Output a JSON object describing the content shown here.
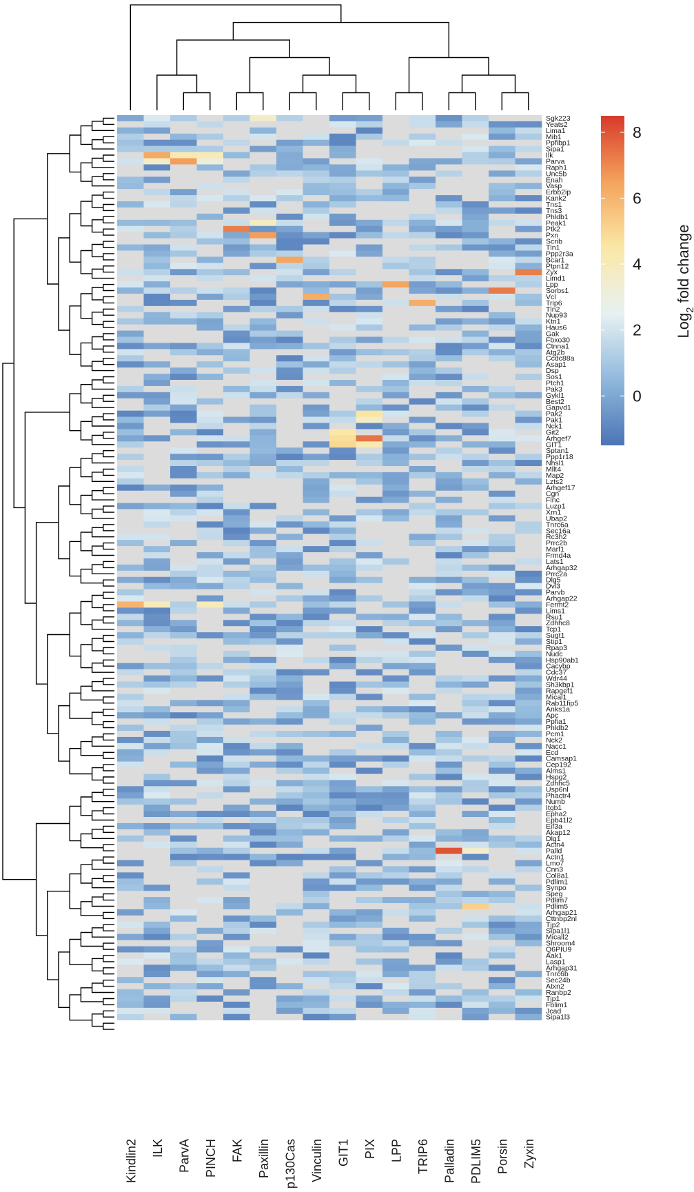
{
  "chart_data": {
    "type": "heatmap",
    "title": "",
    "columns": [
      "Kindlin2",
      "ILK",
      "ParvA",
      "PINCH",
      "FAK",
      "Paxillin",
      "p130Cas",
      "Vinculin",
      "GIT1",
      "PIX",
      "LPP",
      "TRIP6",
      "Palladin",
      "PDLIM5",
      "Porsin",
      "Zyxin"
    ],
    "rows": [
      "Sgk223",
      "Yeats2",
      "Lima1",
      "Mib1",
      "Ppfibp1",
      "Sipa1",
      "Ilk",
      "Parva",
      "Raph1",
      "Unc5b",
      "Enah",
      "Vasp",
      "Erbb2ip",
      "Kank2",
      "Tns1",
      "Tns3",
      "Phldb1",
      "Peak1",
      "Ptk2",
      "Pxn",
      "Scrib",
      "Tln1",
      "Ppp2r3a",
      "Bcar1",
      "Ptpn12",
      "Zyx",
      "Limd1",
      "Lpp",
      "Sorbs1",
      "Vcl",
      "Trip6",
      "Tln2",
      "Nup93",
      "Ktn1",
      "Haus6",
      "Gak",
      "Fbxo30",
      "Ctnna1",
      "Atg2b",
      "Ccdc88a",
      "Asap1",
      "Dsp",
      "Sos1",
      "Ptch1",
      "Pak3",
      "Gykl1",
      "Best2",
      "Gapvd1",
      "Pak2",
      "Pak1",
      "Nck1",
      "Git2",
      "Arhgef7",
      "GIT1",
      "Sptan1",
      "Ppp1r18",
      "Nhsl1",
      "Mllt4",
      "Map2",
      "Lzts2",
      "Arhgef17",
      "Cgn",
      "Flnc",
      "Luzp1",
      "Xrn1",
      "Ubap2",
      "Tnrc6a",
      "Sec16a",
      "Rc3h2",
      "Prrc2b",
      "Marf1",
      "Frmd4a",
      "Lats1",
      "Arhgap32",
      "Prrc2a",
      "Dlg5",
      "Dvl3",
      "Parvb",
      "Arhgap22",
      "Fermt2",
      "Lims1",
      "Rsu1",
      "Zdhhc8",
      "Tcp1",
      "Sugt1",
      "Stip1",
      "Rpap3",
      "Nudc",
      "Hsp90ab1",
      "Cacybp",
      "Cdc37",
      "Wdr44",
      "Sh3kbp1",
      "Rapgef1",
      "Mical1",
      "Rab11fip5",
      "Anks1a",
      "Apc",
      "Ppfia1",
      "Phldb2",
      "Pcm1",
      "Nck2",
      "Nacc1",
      "Ecd",
      "Camsap1",
      "Cep192",
      "Alms1",
      "Hspg2",
      "Zdhhc5",
      "Usp6nl",
      "Phactr4",
      "Numb",
      "Itgb1",
      "Epha2",
      "Epb41l2",
      "Eif3a",
      "Akap12",
      "Dlg1",
      "Actn4",
      "Palld",
      "Actn1",
      "Lmo7",
      "Cnn3",
      "Col8a1",
      "Pdlim1",
      "Synpo",
      "Speg",
      "Pdlim7",
      "Pdlim5",
      "Arhgap21",
      "Cttnbp2nl",
      "Tjp2",
      "Sipa1l1",
      "Micall2",
      "Shroom4",
      "Q6PIU9",
      "Aak1",
      "Lasp1",
      "Arhgap31",
      "Tnrc6b",
      "Sec24b",
      "Atxn2",
      "Ranbp2",
      "Tjp1",
      "Fblim1",
      "Jcad",
      "Sipa1l3"
    ],
    "colorbar": {
      "label_prefix": "Log",
      "label_sub": "2",
      "label_suffix": " fold change",
      "ticks": [
        0,
        2,
        4,
        6,
        8
      ],
      "range": [
        -1.5,
        8.5
      ],
      "colors": [
        "#4b74b6",
        "#91b9dc",
        "#e7f1f3",
        "#fbe8a6",
        "#f4a35c",
        "#d73a2b"
      ]
    },
    "na_color": "#dcdcdc",
    "highlights": [
      {
        "row": "Ilk",
        "col": "ILK",
        "value": 6.3
      },
      {
        "row": "Parva",
        "col": "ParvA",
        "value": 6.6
      },
      {
        "row": "Ilk",
        "col": "ParvA",
        "value": 4.2
      },
      {
        "row": "Ilk",
        "col": "PINCH",
        "value": 4.0
      },
      {
        "row": "Parva",
        "col": "PINCH",
        "value": 3.2
      },
      {
        "row": "Parva",
        "col": "ILK",
        "value": 3.6
      },
      {
        "row": "Ptk2",
        "col": "FAK",
        "value": 7.2
      },
      {
        "row": "Pxn",
        "col": "Paxillin",
        "value": 6.6
      },
      {
        "row": "Bcar1",
        "col": "p130Cas",
        "value": 6.4
      },
      {
        "row": "Vcl",
        "col": "Vinculin",
        "value": 6.2
      },
      {
        "row": "Lpp",
        "col": "LPP",
        "value": 6.4
      },
      {
        "row": "Trip6",
        "col": "TRIP6",
        "value": 6.2
      },
      {
        "row": "Sorbs1",
        "col": "Porsin",
        "value": 7.3
      },
      {
        "row": "Zyx",
        "col": "Zyxin",
        "value": 7.2
      },
      {
        "row": "Arhgef7",
        "col": "PIX",
        "value": 7.4
      },
      {
        "row": "GIT1",
        "col": "PIX",
        "value": 4.2
      },
      {
        "row": "Git2",
        "col": "GIT1",
        "value": 4.5
      },
      {
        "row": "GIT1",
        "col": "GIT1",
        "value": 5.0
      },
      {
        "row": "Arhgef7",
        "col": "GIT1",
        "value": 4.8
      },
      {
        "row": "Pak2",
        "col": "PIX",
        "value": 4.6
      },
      {
        "row": "Pak1",
        "col": "PIX",
        "value": 3.6
      },
      {
        "row": "Fermt2",
        "col": "Kindlin2",
        "value": 6.0
      },
      {
        "row": "Fermt2",
        "col": "ILK",
        "value": 4.0
      },
      {
        "row": "Fermt2",
        "col": "PINCH",
        "value": 4.0
      },
      {
        "row": "Palld",
        "col": "Palladin",
        "value": 8.0
      },
      {
        "row": "Palld",
        "col": "PDLIM5",
        "value": 3.5
      },
      {
        "row": "Pdlim5",
        "col": "PDLIM5",
        "value": 5.2
      },
      {
        "row": "Peak1",
        "col": "Paxillin",
        "value": 3.8
      },
      {
        "row": "Sgk223",
        "col": "Paxillin",
        "value": 3.6
      }
    ]
  }
}
